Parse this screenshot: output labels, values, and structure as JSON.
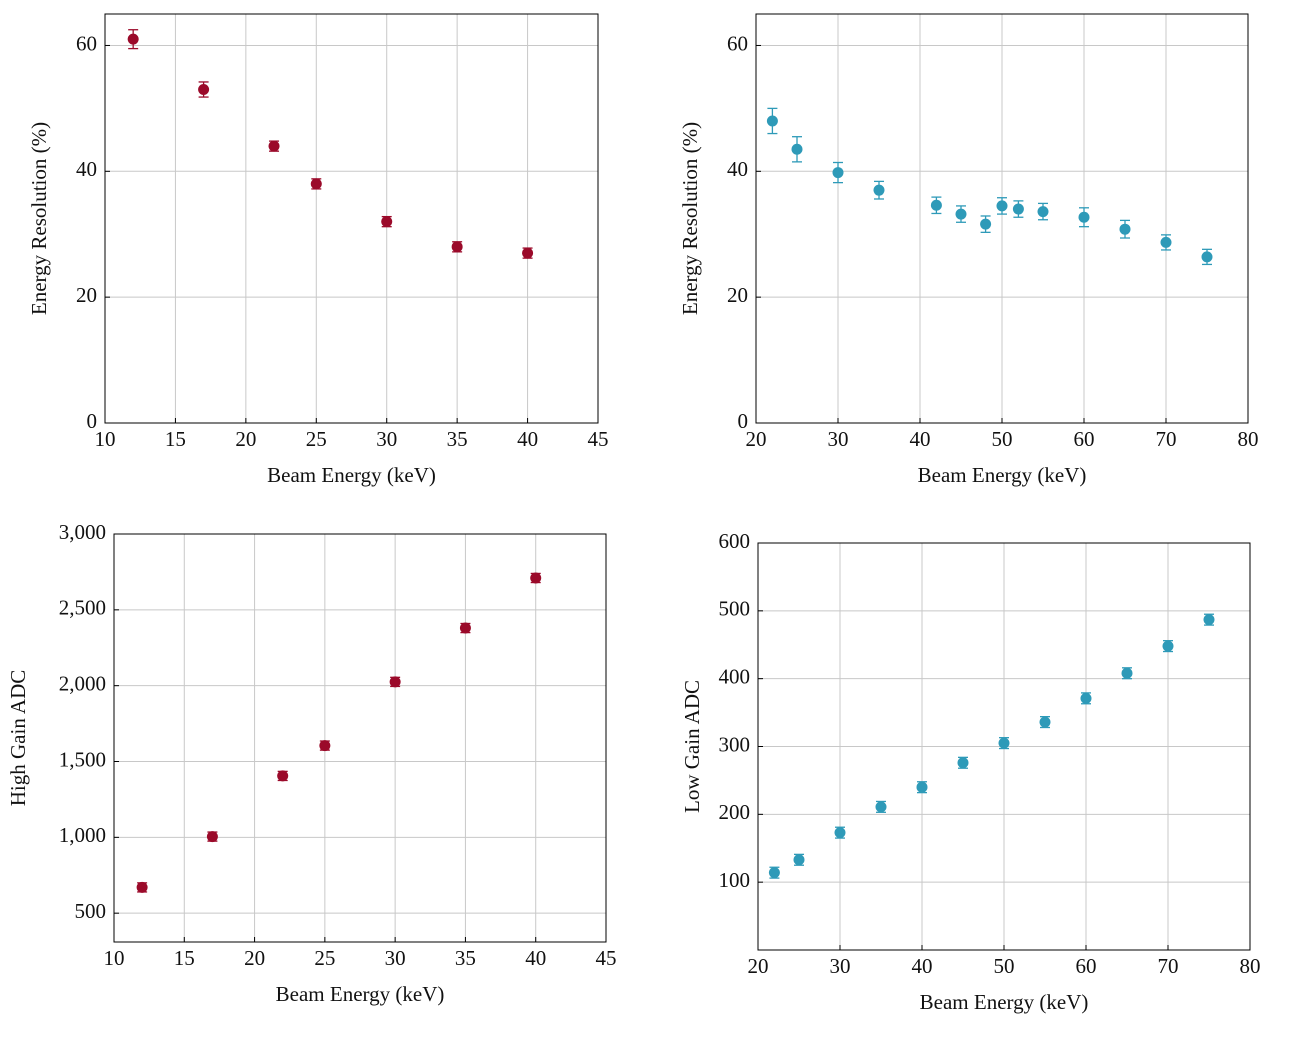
{
  "chart_data": [
    {
      "type": "scatter",
      "x_label": "Beam Energy (keV)",
      "y_label": "Energy Resolution (%)",
      "color": "#9b0a2a",
      "grid": true,
      "x": [
        12,
        17,
        22,
        25,
        30,
        35,
        40
      ],
      "values": [
        61,
        53,
        44,
        38,
        32,
        28,
        27
      ],
      "errors": [
        1.5,
        1.2,
        0.8,
        0.8,
        0.8,
        0.8,
        0.8
      ],
      "xlim": [
        10,
        45
      ],
      "xticks": [
        10,
        15,
        20,
        25,
        30,
        35,
        40,
        45
      ],
      "ylim": [
        0,
        65
      ],
      "yticks": [
        0,
        20,
        40,
        60
      ]
    },
    {
      "type": "scatter",
      "x_label": "Beam Energy (keV)",
      "y_label": "Energy Resolution (%)",
      "color": "#2e9ab8",
      "grid": true,
      "x": [
        22,
        25,
        30,
        35,
        42,
        45,
        48,
        50,
        52,
        55,
        60,
        65,
        70,
        75
      ],
      "values": [
        48,
        43.5,
        39.8,
        37,
        34.6,
        33.2,
        31.6,
        34.5,
        34,
        33.6,
        32.7,
        30.8,
        28.7,
        26.4
      ],
      "errors": [
        2,
        2,
        1.6,
        1.4,
        1.3,
        1.3,
        1.3,
        1.3,
        1.3,
        1.3,
        1.5,
        1.4,
        1.2,
        1.2
      ],
      "xlim": [
        20,
        80
      ],
      "xticks": [
        20,
        30,
        40,
        50,
        60,
        70,
        80
      ],
      "ylim": [
        0,
        65
      ],
      "yticks": [
        0,
        20,
        40,
        60
      ]
    },
    {
      "type": "scatter",
      "x_label": "Beam Energy (keV)",
      "y_label": "High Gain ADC",
      "color": "#9b0a2a",
      "grid": true,
      "x": [
        12,
        17,
        22,
        25,
        30,
        35,
        40
      ],
      "values": [
        670,
        1005,
        1405,
        1605,
        2025,
        2380,
        2710
      ],
      "errors": [
        30,
        30,
        30,
        30,
        30,
        30,
        30
      ],
      "xlim": [
        10,
        45
      ],
      "xticks": [
        10,
        15,
        20,
        25,
        30,
        35,
        40,
        45
      ],
      "ylim": [
        310,
        3000
      ],
      "yticks": [
        500,
        {
          "value": 1000,
          "label": "1,000"
        },
        {
          "value": 1500,
          "label": "1,500"
        },
        {
          "value": 2000,
          "label": "2,000"
        },
        {
          "value": 2500,
          "label": "2,500"
        },
        {
          "value": 3000,
          "label": "3,000"
        }
      ]
    },
    {
      "type": "scatter",
      "x_label": "Beam Energy (keV)",
      "y_label": "Low Gain ADC",
      "color": "#2e9ab8",
      "grid": true,
      "x": [
        22,
        25,
        30,
        35,
        40,
        45,
        50,
        55,
        60,
        65,
        70,
        75
      ],
      "values": [
        114,
        133,
        173,
        211,
        240,
        276,
        305,
        336,
        371,
        408,
        448,
        487
      ],
      "errors": [
        8,
        8,
        8,
        8,
        8,
        8,
        8,
        8,
        8,
        8,
        8,
        8
      ],
      "xlim": [
        20,
        80
      ],
      "xticks": [
        20,
        30,
        40,
        50,
        60,
        70,
        80
      ],
      "ylim": [
        0,
        600
      ],
      "yticks": [
        100,
        200,
        300,
        400,
        500,
        600
      ]
    }
  ]
}
